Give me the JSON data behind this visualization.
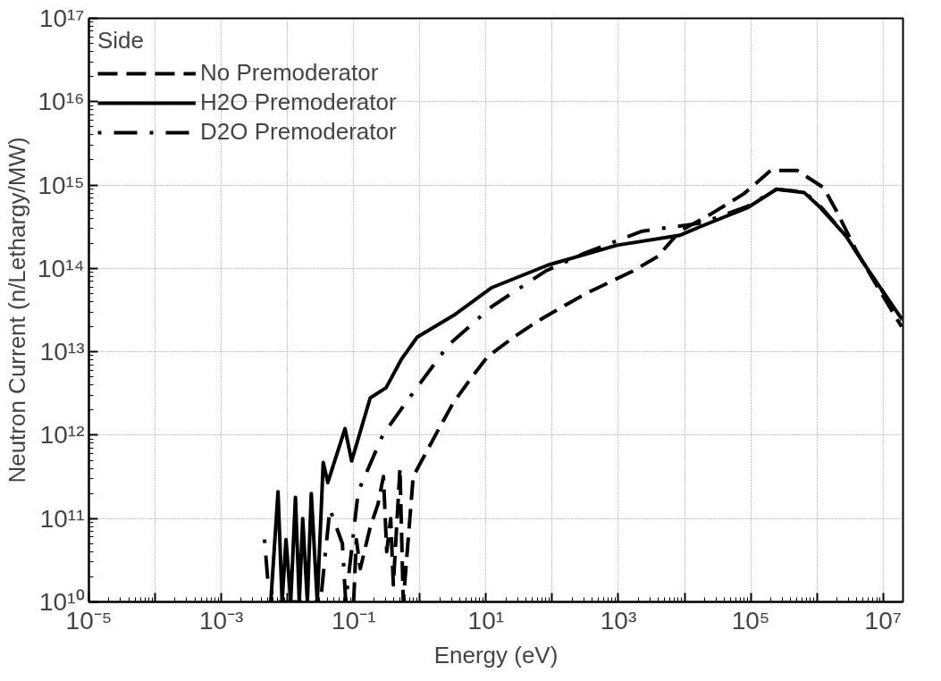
{
  "chart_data": {
    "type": "line",
    "xlabel": "Energy (eV)",
    "ylabel": "Neutron Current (n/Lethargy/MW)",
    "legend_title": "Side",
    "log": "xy",
    "grid": true,
    "legend": "top left",
    "xlim": [
      1e-05,
      20000000.0
    ],
    "ylim": [
      10000000000.0,
      1e+17
    ],
    "xticks": [
      {
        "value": 1e-05,
        "label": "10⁻⁵"
      },
      {
        "value": 0.0001,
        "label": null
      },
      {
        "value": 0.001,
        "label": "10⁻³"
      },
      {
        "value": 0.01,
        "label": null
      },
      {
        "value": 0.1,
        "label": "10⁻¹"
      },
      {
        "value": 1,
        "label": null
      },
      {
        "value": 10,
        "label": "10¹"
      },
      {
        "value": 100,
        "label": null
      },
      {
        "value": 1000.0,
        "label": "10³"
      },
      {
        "value": 10000.0,
        "label": null
      },
      {
        "value": 100000.0,
        "label": "10⁵"
      },
      {
        "value": 1000000.0,
        "label": null
      },
      {
        "value": 10000000.0,
        "label": "10⁷"
      }
    ],
    "yticks": [
      {
        "value": 10000000000.0,
        "label": "10¹⁰"
      },
      {
        "value": 100000000000.0,
        "label": "10¹¹"
      },
      {
        "value": 1000000000000.0,
        "label": "10¹²"
      },
      {
        "value": 10000000000000.0,
        "label": "10¹³"
      },
      {
        "value": 100000000000000.0,
        "label": "10¹⁴"
      },
      {
        "value": 1000000000000000.0,
        "label": "10¹⁵"
      },
      {
        "value": 1e+16,
        "label": "10¹⁶"
      },
      {
        "value": 1e+17,
        "label": "10¹⁷"
      }
    ],
    "series": [
      {
        "name": "No Premoderator",
        "color": "#000000",
        "line_style": "dashed",
        "x": [
          0.1,
          0.11,
          0.126,
          0.178,
          0.234,
          0.282,
          0.316,
          0.363,
          0.398,
          0.501,
          0.562,
          0.794,
          1.95,
          3.16,
          6.03,
          10.5,
          26.3,
          58.9,
          145,
          324,
          724,
          1660,
          3980,
          8510,
          25100,
          79400,
          200000.0,
          500000.0,
          1260000.0,
          2000000.0,
          3980000.0,
          7940000.0,
          19000000.0
        ],
        "values": [
          10000000000.0,
          56000000000.0,
          25000000000.0,
          79000000000.0,
          150000000000.0,
          320000000000.0,
          40000000000.0,
          100000000000.0,
          16000000000.0,
          400000000000.0,
          10000000000.0,
          320000000000.0,
          1200000000000.0,
          2400000000000.0,
          4900000000000.0,
          8700000000000.0,
          15000000000000.0,
          23000000000000.0,
          35000000000000.0,
          50000000000000.0,
          68000000000000.0,
          93000000000000.0,
          140000000000000.0,
          280000000000000.0,
          450000000000000.0,
          790000000000000.0,
          1500000000000000.0,
          1500000000000000.0,
          930000000000000.0,
          480000000000000.0,
          160000000000000.0,
          63000000000000.0,
          20000000000000.0
        ]
      },
      {
        "name": "H2O Premoderator",
        "color": "#000000",
        "line_style": "solid",
        "x": [
          0.0056,
          0.0072,
          0.0083,
          0.0095,
          0.0112,
          0.0132,
          0.0151,
          0.017,
          0.02,
          0.0229,
          0.0282,
          0.0347,
          0.0407,
          0.0741,
          0.0933,
          0.178,
          0.309,
          0.525,
          0.912,
          3.39,
          12.3,
          87,
          955,
          8510,
          17800,
          91200,
          245000,
          646000,
          1120000.0,
          2690000.0,
          5750000.0,
          19000000.0
        ],
        "values": [
          10000000000.0,
          210000000000.0,
          10000000000.0,
          56000000000.0,
          10000000000.0,
          180000000000.0,
          10000000000.0,
          100000000000.0,
          10000000000.0,
          200000000000.0,
          10000000000.0,
          470000000000.0,
          270000000000.0,
          1200000000000.0,
          490000000000.0,
          2800000000000.0,
          3700000000000.0,
          8100000000000.0,
          15000000000000.0,
          28000000000000.0,
          59000000000000.0,
          110000000000000.0,
          190000000000000.0,
          250000000000000.0,
          320000000000000.0,
          540000000000000.0,
          890000000000000.0,
          810000000000000.0,
          540000000000000.0,
          250000000000000.0,
          100000000000000.0,
          25000000000000.0
        ]
      },
      {
        "name": "D2O Premoderator",
        "color": "#000000",
        "line_style": "dashdot",
        "x": [
          0.0045,
          0.005,
          0.0063,
          0.0316,
          0.0437,
          0.0676,
          0.0759,
          0.117,
          0.275,
          0.603,
          2.69,
          12.3,
          79.4,
          295,
          2290,
          17800,
          91200,
          245000,
          646000,
          1120000.0,
          2690000.0,
          5750000.0,
          19000000.0
        ],
        "values": [
          56000000000.0,
          20000000000.0,
          10000000000.0,
          10000000000.0,
          130000000000.0,
          50000000000.0,
          10000000000.0,
          210000000000.0,
          1000000000000.0,
          2400000000000.0,
          12000000000000.0,
          35000000000000.0,
          93000000000000.0,
          150000000000000.0,
          280000000000000.0,
          350000000000000.0,
          560000000000000.0,
          890000000000000.0,
          830000000000000.0,
          560000000000000.0,
          250000000000000.0,
          100000000000000.0,
          24000000000000.0
        ]
      }
    ]
  }
}
